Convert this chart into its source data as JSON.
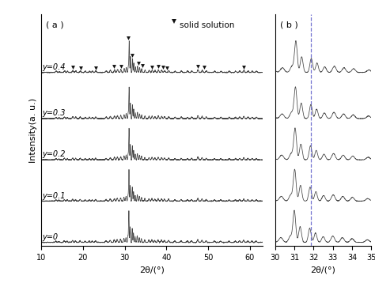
{
  "fig_width": 4.74,
  "fig_height": 3.58,
  "dpi": 100,
  "background": "#ffffff",
  "panel_a": {
    "label": "( a )",
    "xlabel": "2θ/(°)",
    "ylabel": "Intensity(a. u.)",
    "xlim": [
      10,
      63
    ],
    "x_ticks": [
      10,
      20,
      30,
      40,
      50,
      60
    ],
    "curves": [
      "y=0",
      "y=0.1",
      "y=0.2",
      "y=0.3",
      "y=0.4"
    ],
    "offsets": [
      0.0,
      0.85,
      1.7,
      2.55,
      3.5
    ],
    "triangle_positions": [
      17.5,
      19.5,
      23.0,
      27.5,
      29.2,
      30.8,
      31.8,
      33.2,
      34.2,
      36.5,
      38.0,
      39.2,
      40.2,
      47.5,
      49.0,
      58.5
    ],
    "legend_text": "solid solution"
  },
  "panel_b": {
    "label": "( b )",
    "xlabel": "2θ/(°)",
    "xlim": [
      30,
      35
    ],
    "x_ticks": [
      30,
      31,
      32,
      33,
      34,
      35
    ],
    "dashed_line_x": 31.85
  },
  "line_color": "#444444",
  "triangle_color": "#111111",
  "dashed_color": "#6666cc",
  "label_fontsize": 8,
  "tick_fontsize": 7,
  "curve_label_fontsize": 7,
  "legend_fontsize": 7.5
}
